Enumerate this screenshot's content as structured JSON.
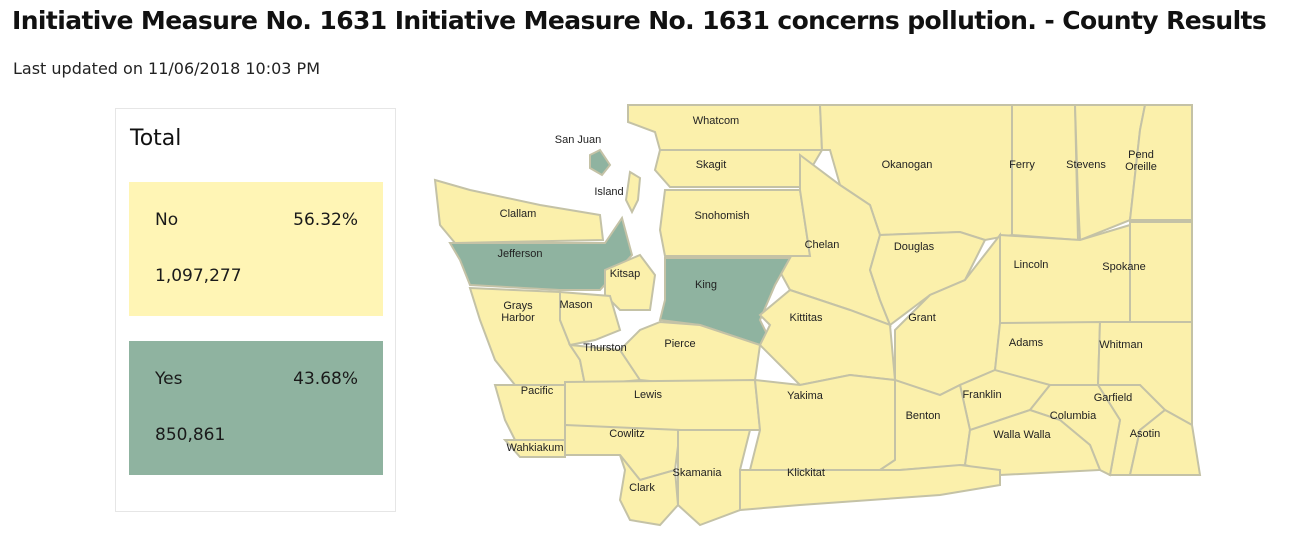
{
  "header": {
    "title": "Initiative Measure No. 1631 Initiative Measure No. 1631 concerns pollution. - County Results",
    "updated": "Last updated on 11/06/2018 10:03 PM"
  },
  "totals": {
    "title": "Total",
    "results": [
      {
        "label": "No",
        "percent": "56.32%",
        "votes": "1,097,277",
        "color": "#fff5b5"
      },
      {
        "label": "Yes",
        "percent": "43.68%",
        "votes": "850,861",
        "color": "#8fb3a0"
      }
    ]
  },
  "map": {
    "colors": {
      "No": "#fbf0ab",
      "Yes": "#8fb3a0",
      "border": "#c4c2a6"
    },
    "counties": [
      {
        "name": "Whatcom",
        "winner": "No"
      },
      {
        "name": "San Juan",
        "winner": "Yes"
      },
      {
        "name": "Skagit",
        "winner": "No"
      },
      {
        "name": "Island",
        "winner": "No"
      },
      {
        "name": "Okanogan",
        "winner": "No"
      },
      {
        "name": "Ferry",
        "winner": "No"
      },
      {
        "name": "Stevens",
        "winner": "No"
      },
      {
        "name": "Pend Oreille",
        "winner": "No"
      },
      {
        "name": "Clallam",
        "winner": "No"
      },
      {
        "name": "Snohomish",
        "winner": "No"
      },
      {
        "name": "Chelan",
        "winner": "No"
      },
      {
        "name": "Douglas",
        "winner": "No"
      },
      {
        "name": "Jefferson",
        "winner": "Yes"
      },
      {
        "name": "Kitsap",
        "winner": "No"
      },
      {
        "name": "King",
        "winner": "Yes"
      },
      {
        "name": "Lincoln",
        "winner": "No"
      },
      {
        "name": "Spokane",
        "winner": "No"
      },
      {
        "name": "Grays Harbor",
        "winner": "No"
      },
      {
        "name": "Mason",
        "winner": "No"
      },
      {
        "name": "Kittitas",
        "winner": "No"
      },
      {
        "name": "Grant",
        "winner": "No"
      },
      {
        "name": "Thurston",
        "winner": "No"
      },
      {
        "name": "Pierce",
        "winner": "No"
      },
      {
        "name": "Adams",
        "winner": "No"
      },
      {
        "name": "Whitman",
        "winner": "No"
      },
      {
        "name": "Pacific",
        "winner": "No"
      },
      {
        "name": "Lewis",
        "winner": "No"
      },
      {
        "name": "Yakima",
        "winner": "No"
      },
      {
        "name": "Franklin",
        "winner": "No"
      },
      {
        "name": "Garfield",
        "winner": "No"
      },
      {
        "name": "Columbia",
        "winner": "No"
      },
      {
        "name": "Benton",
        "winner": "No"
      },
      {
        "name": "Cowlitz",
        "winner": "No"
      },
      {
        "name": "Walla Walla",
        "winner": "No"
      },
      {
        "name": "Asotin",
        "winner": "No"
      },
      {
        "name": "Wahkiakum",
        "winner": "No"
      },
      {
        "name": "Skamania",
        "winner": "No"
      },
      {
        "name": "Clark",
        "winner": "No"
      },
      {
        "name": "Klickitat",
        "winner": "No"
      }
    ]
  }
}
